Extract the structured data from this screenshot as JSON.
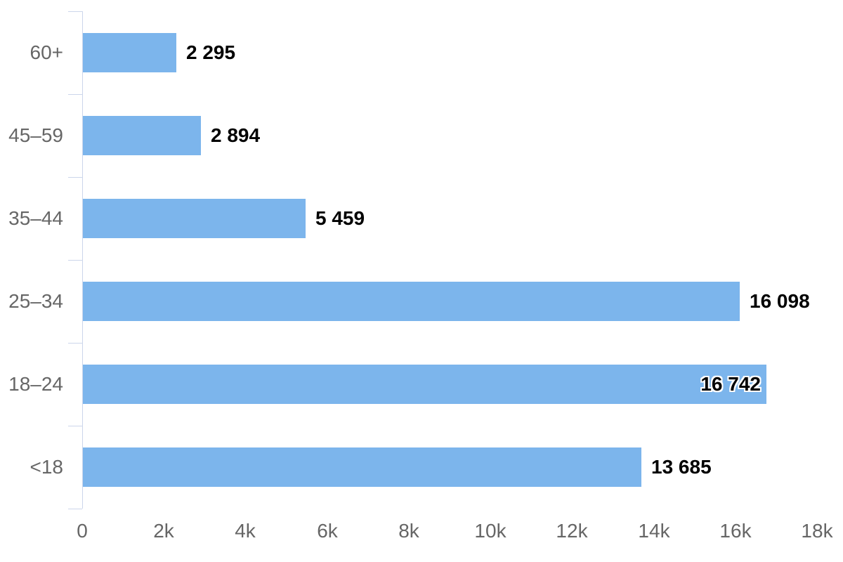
{
  "chart_data": {
    "type": "bar",
    "orientation": "horizontal",
    "title": "",
    "xlabel": "",
    "ylabel": "",
    "categories": [
      "60+",
      "45–59",
      "35–44",
      "25–34",
      "18–24",
      "<18"
    ],
    "values": [
      2295,
      2894,
      5459,
      16098,
      16742,
      13685
    ],
    "value_labels": [
      "2 295",
      "2 894",
      "5 459",
      "16 098",
      "16 742",
      "13 685"
    ],
    "label_placement": [
      "outside",
      "outside",
      "outside",
      "outside",
      "inside",
      "outside"
    ],
    "xlim": [
      0,
      18000
    ],
    "x_ticks": [
      {
        "value": 0,
        "label": "0"
      },
      {
        "value": 2000,
        "label": "2k"
      },
      {
        "value": 4000,
        "label": "4k"
      },
      {
        "value": 6000,
        "label": "6k"
      },
      {
        "value": 8000,
        "label": "8k"
      },
      {
        "value": 10000,
        "label": "10k"
      },
      {
        "value": 12000,
        "label": "12k"
      },
      {
        "value": 14000,
        "label": "14k"
      },
      {
        "value": 16000,
        "label": "16k"
      },
      {
        "value": 18000,
        "label": "18k"
      }
    ],
    "grid": false,
    "legend": false,
    "colors": {
      "bar": "#7cb5ec",
      "axis": "#ccd6eb",
      "axis_labels": "#666666",
      "value_label": "#000000",
      "background": "#ffffff"
    }
  }
}
